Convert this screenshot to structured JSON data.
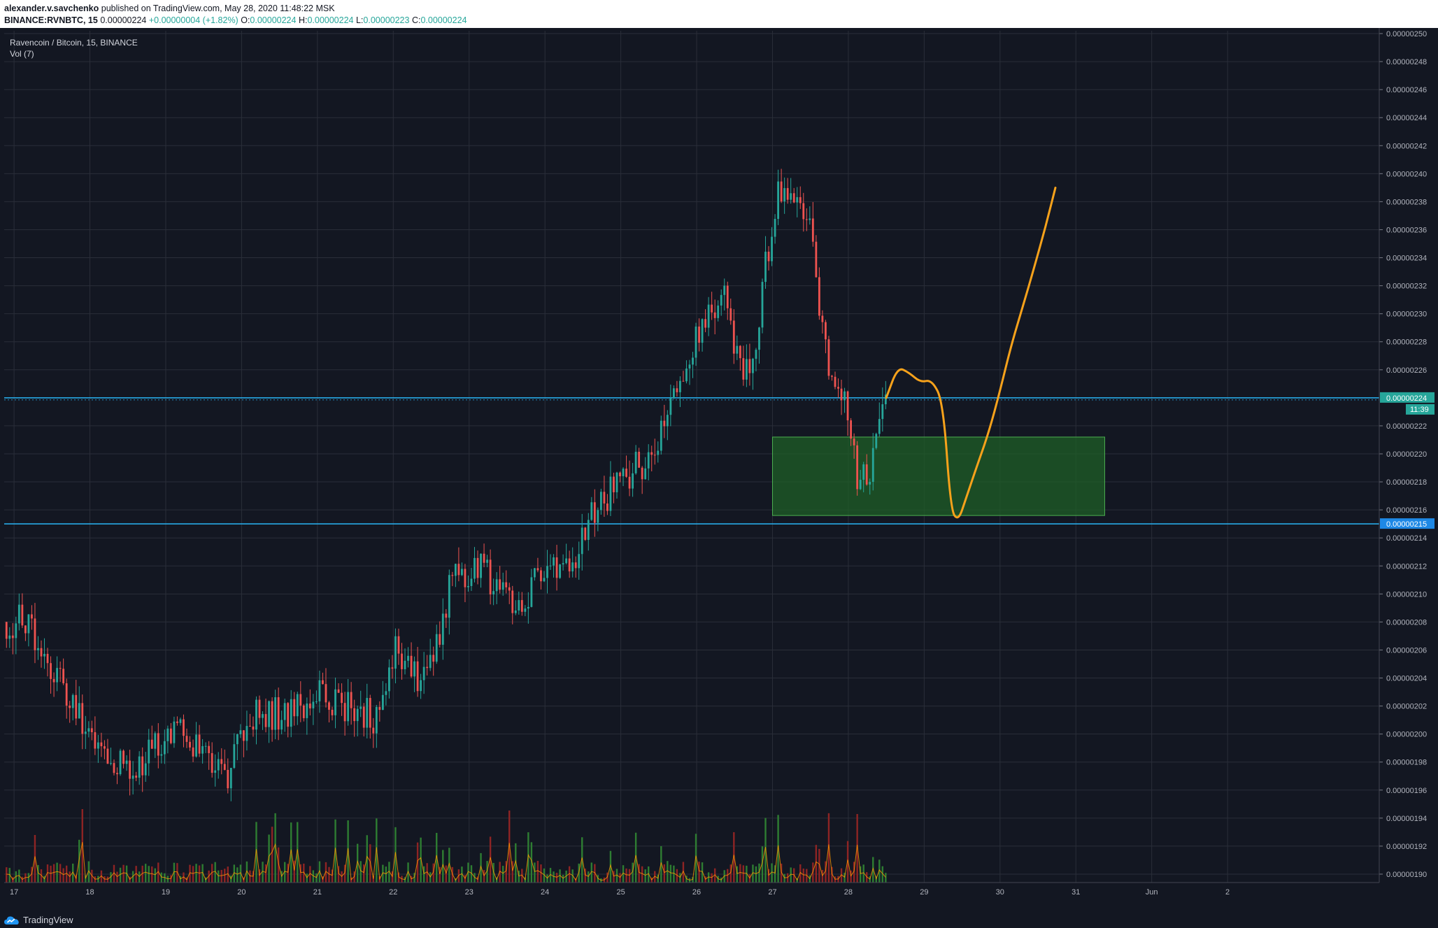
{
  "header": {
    "author": "alexander.v.savchenko",
    "published_text": "published on TradingView.com, May 28, 2020 11:48:22 MSK",
    "symbol": "BINANCE:RVNBTC, 15",
    "last": "0.00000224",
    "change": "+0.00000004 (+1.82%)",
    "o_label": "O:",
    "o_value": "0.00000224",
    "h_label": "H:",
    "h_value": "0.00000224",
    "l_label": "L:",
    "l_value": "0.00000223",
    "c_label": "C:",
    "c_value": "0.00000224"
  },
  "legend": {
    "title": "Ravencoin / Bitcoin, 15, BINANCE",
    "volume": "Vol (7)"
  },
  "footer": {
    "brand": "TradingView"
  },
  "colors": {
    "background": "#131722",
    "grid": "#2a2e39",
    "up": "#26a69a",
    "down": "#ef5350",
    "horizontal_line": "#29b6f6",
    "drawing": "#f7a21b",
    "zone_fill": "#1f5f27",
    "zone_border": "#4caf50"
  },
  "chart_data": {
    "type": "candlestick",
    "title": "Ravencoin / Bitcoin, 15, BINANCE",
    "y_axis_ticks": [
      "0.00000250",
      "0.00000248",
      "0.00000246",
      "0.00000244",
      "0.00000242",
      "0.00000240",
      "0.00000238",
      "0.00000236",
      "0.00000234",
      "0.00000232",
      "0.00000230",
      "0.00000228",
      "0.00000226",
      "0.00000222",
      "0.00000220",
      "0.00000218",
      "0.00000216",
      "0.00000214",
      "0.00000212",
      "0.00000210",
      "0.00000208",
      "0.00000206",
      "0.00000204",
      "0.00000202",
      "0.00000200",
      "0.00000198",
      "0.00000196",
      "0.00000194",
      "0.00000192",
      "0.00000190"
    ],
    "ylim": [
      1.894e-06,
      2.502e-06
    ],
    "x_axis_ticks": [
      "17",
      "18",
      "19",
      "20",
      "21",
      "22",
      "23",
      "24",
      "25",
      "26",
      "27",
      "28",
      "29",
      "30",
      "31",
      "Jun",
      "2"
    ],
    "xlim": [
      16.87,
      35.0
    ],
    "last_price_label": "0.00000224",
    "countdown_label": "11:39",
    "level_label": "0.00000215",
    "price_path": [
      [
        16.9,
        2.08e-06
      ],
      [
        17.1,
        2.08e-06
      ],
      [
        17.25,
        2.07e-06
      ],
      [
        17.4,
        2.06e-06
      ],
      [
        17.55,
        2.04e-06
      ],
      [
        17.7,
        2.03e-06
      ],
      [
        17.9,
        2.01e-06
      ],
      [
        18.1,
        1.99e-06
      ],
      [
        18.3,
        1.985e-06
      ],
      [
        18.5,
        1.98e-06
      ],
      [
        18.6,
        1.97e-06
      ],
      [
        18.8,
        1.99e-06
      ],
      [
        19.0,
        1.995e-06
      ],
      [
        19.2,
        2e-06
      ],
      [
        19.4,
        1.99e-06
      ],
      [
        19.6,
        1.975e-06
      ],
      [
        19.8,
        1.97e-06
      ],
      [
        20.0,
        2e-06
      ],
      [
        20.2,
        2.02e-06
      ],
      [
        20.4,
        2.015e-06
      ],
      [
        20.6,
        2.01e-06
      ],
      [
        20.8,
        2.02e-06
      ],
      [
        21.0,
        2.03e-06
      ],
      [
        21.2,
        2.025e-06
      ],
      [
        21.4,
        2.02e-06
      ],
      [
        21.6,
        2.015e-06
      ],
      [
        21.8,
        2.01e-06
      ],
      [
        22.0,
        2.06e-06
      ],
      [
        22.2,
        2.05e-06
      ],
      [
        22.4,
        2.035e-06
      ],
      [
        22.6,
        2.07e-06
      ],
      [
        22.8,
        2.12e-06
      ],
      [
        23.0,
        2.11e-06
      ],
      [
        23.2,
        2.12e-06
      ],
      [
        23.4,
        2.1e-06
      ],
      [
        23.6,
        2.085e-06
      ],
      [
        23.8,
        2.1e-06
      ],
      [
        24.0,
        2.12e-06
      ],
      [
        24.2,
        2.11e-06
      ],
      [
        24.4,
        2.12e-06
      ],
      [
        24.6,
        2.16e-06
      ],
      [
        24.8,
        2.17e-06
      ],
      [
        25.0,
        2.18e-06
      ],
      [
        25.2,
        2.19e-06
      ],
      [
        25.4,
        2.2e-06
      ],
      [
        25.6,
        2.23e-06
      ],
      [
        25.8,
        2.26e-06
      ],
      [
        26.0,
        2.28e-06
      ],
      [
        26.2,
        2.3e-06
      ],
      [
        26.4,
        2.31e-06
      ],
      [
        26.6,
        2.25e-06
      ],
      [
        26.8,
        2.29e-06
      ],
      [
        27.0,
        2.37e-06
      ],
      [
        27.1,
        2.39e-06
      ],
      [
        27.3,
        2.38e-06
      ],
      [
        27.5,
        2.37e-06
      ],
      [
        27.6,
        2.3e-06
      ],
      [
        27.7,
        2.27e-06
      ],
      [
        27.9,
        2.25e-06
      ],
      [
        28.0,
        2.23e-06
      ],
      [
        28.15,
        2.175e-06
      ],
      [
        28.3,
        2.19e-06
      ],
      [
        28.4,
        2.22e-06
      ],
      [
        28.5,
        2.24e-06
      ]
    ],
    "horizontal_lines": [
      2.24e-06,
      2.15e-06
    ],
    "zone": {
      "x": [
        27.0,
        31.38
      ],
      "y": [
        2.156e-06,
        2.212e-06
      ]
    },
    "projection_path": [
      [
        28.5,
        2.24e-06
      ],
      [
        28.65,
        2.262e-06
      ],
      [
        28.8,
        2.258e-06
      ],
      [
        28.95,
        2.251e-06
      ],
      [
        29.1,
        2.253e-06
      ],
      [
        29.25,
        2.237e-06
      ],
      [
        29.35,
        2.16e-06
      ],
      [
        29.45,
        2.152e-06
      ],
      [
        29.55,
        2.168e-06
      ],
      [
        29.7,
        2.192e-06
      ],
      [
        29.85,
        2.215e-06
      ],
      [
        30.0,
        2.245e-06
      ],
      [
        30.15,
        2.278e-06
      ],
      [
        30.3,
        2.305e-06
      ],
      [
        30.45,
        2.333e-06
      ],
      [
        30.6,
        2.362e-06
      ],
      [
        30.73,
        2.39e-06
      ]
    ]
  }
}
